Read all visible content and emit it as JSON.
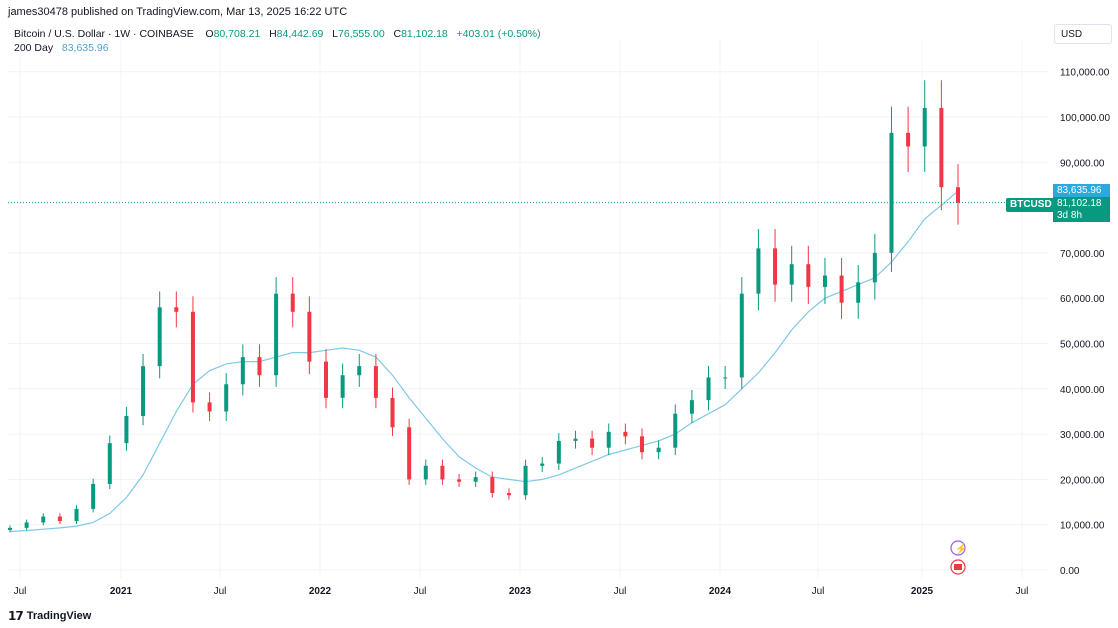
{
  "header": {
    "published_text": "james30478 published on TradingView.com, Mar 13, 2025 16:22 UTC"
  },
  "legend": {
    "symbol": "Bitcoin / U.S. Dollar · 1W · COINBASE",
    "open_label": "O",
    "open": "80,708.21",
    "high_label": "H",
    "high": "84,442.69",
    "low_label": "L",
    "low": "76,555.00",
    "close_label": "C",
    "close": "81,102.18",
    "change": "+403.01 (+0.50%)",
    "ma_label": "200 Day",
    "ma_value": "83,635.96"
  },
  "currency": "USD",
  "price_axis": {
    "ticks": [
      "110,000.00",
      "100,000.00",
      "90,000.00",
      "70,000.00",
      "60,000.00",
      "50,000.00",
      "40,000.00",
      "30,000.00",
      "20,000.00",
      "10,000.00",
      "0.00"
    ],
    "ma_label": "83,635.96",
    "price_label": "81,102.18",
    "countdown": "3d 8h",
    "symbol_tag": "BTCUSD"
  },
  "time_axis": {
    "labels": [
      "Jul",
      "2021",
      "Jul",
      "2022",
      "Jul",
      "2023",
      "Jul",
      "2024",
      "Jul",
      "2025",
      "Jul"
    ]
  },
  "footer": {
    "logo_text": "TradingView"
  },
  "colors": {
    "up": "#089981",
    "down": "#f23645",
    "ma": "#7fc9e6",
    "grid": "#f0f3fa"
  },
  "chart_data": {
    "type": "line",
    "title": "",
    "xlabel": "",
    "ylabel": "",
    "ylim": [
      0,
      115000
    ],
    "x": [
      "2020-06",
      "2020-07",
      "2020-08",
      "2020-09",
      "2020-10",
      "2020-11",
      "2020-12",
      "2021-01",
      "2021-02",
      "2021-03",
      "2021-04",
      "2021-05",
      "2021-06",
      "2021-07",
      "2021-08",
      "2021-09",
      "2021-10",
      "2021-11",
      "2021-12",
      "2022-01",
      "2022-02",
      "2022-03",
      "2022-04",
      "2022-05",
      "2022-06",
      "2022-07",
      "2022-08",
      "2022-09",
      "2022-10",
      "2022-11",
      "2022-12",
      "2023-01",
      "2023-02",
      "2023-03",
      "2023-04",
      "2023-05",
      "2023-06",
      "2023-07",
      "2023-08",
      "2023-09",
      "2023-10",
      "2023-11",
      "2023-12",
      "2024-01",
      "2024-02",
      "2024-03",
      "2024-04",
      "2024-05",
      "2024-06",
      "2024-07",
      "2024-08",
      "2024-09",
      "2024-10",
      "2024-11",
      "2024-12",
      "2025-01",
      "2025-02",
      "2025-03"
    ],
    "series": [
      {
        "values": [
          9300,
          10500,
          11800,
          10800,
          13500,
          19000,
          28000,
          34000,
          45000,
          58000,
          57000,
          37000,
          35000,
          41000,
          47000,
          43000,
          61000,
          57000,
          46000,
          38000,
          43000,
          45000,
          38000,
          31500,
          20000,
          23000,
          20000,
          19500,
          20500,
          17000,
          16500,
          23000,
          23500,
          28500,
          29000,
          27000,
          30500,
          29500,
          26000,
          27000,
          34500,
          37500,
          42500,
          42500,
          61000,
          71000,
          63000,
          67500,
          62500,
          65000,
          59000,
          63500,
          70000,
          96500,
          93500,
          102000,
          84500,
          81102
        ]
      },
      {
        "name": "200 Day",
        "values": [
          8500,
          8700,
          9000,
          9300,
          9700,
          10500,
          12500,
          16000,
          21000,
          28000,
          35000,
          41000,
          44000,
          45500,
          46000,
          46000,
          47000,
          48000,
          48000,
          48500,
          49000,
          48500,
          47000,
          43000,
          38000,
          33500,
          29000,
          25000,
          22500,
          20500,
          20000,
          19500,
          20000,
          21000,
          22500,
          24000,
          25500,
          26500,
          27500,
          28500,
          30000,
          32500,
          34500,
          36500,
          40000,
          43500,
          48000,
          53000,
          57000,
          60000,
          61500,
          63000,
          64500,
          68000,
          72500,
          77500,
          80500,
          83636
        ]
      }
    ]
  }
}
